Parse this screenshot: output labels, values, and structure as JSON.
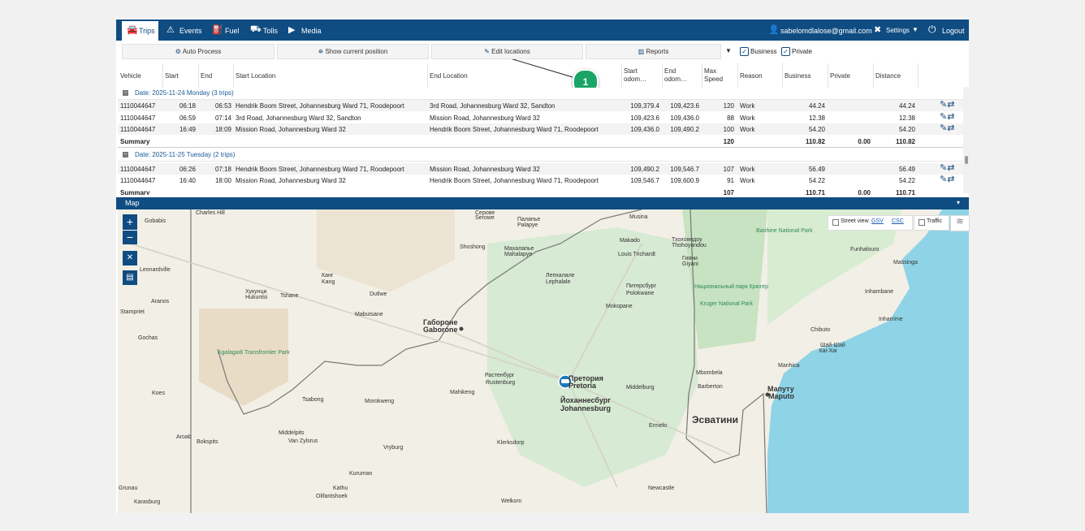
{
  "nav": {
    "items": [
      "Trips",
      "Events",
      "Fuel",
      "Tolls",
      "Media"
    ],
    "user": "sabelomdlalose@gmail.com",
    "settings": "Settings",
    "logout": "Logout"
  },
  "toolbar": {
    "buttons": [
      "Auto Process",
      "Show current position",
      "Edit locations",
      "Reports"
    ],
    "checkboxes": [
      "Business",
      "Private"
    ]
  },
  "table": {
    "columns": [
      "Vehicle",
      "Start",
      "End",
      "Start Location",
      "End Location",
      "Start odom…",
      "End odom…",
      "Max Speed",
      "Reason",
      "Business",
      "Private",
      "Distance"
    ],
    "groups": [
      {
        "label": "Date: 2025-11-24 Monday (3 trips)",
        "rows": [
          {
            "vehicle": "1110044647",
            "start": "06:18",
            "end": "06:53",
            "start_location": "Hendrik Boom Street, Johannesburg Ward 71, Roodepoort",
            "end_location": "3rd Road, Johannesburg Ward 32, Sandton",
            "start_odo": "109,379.4",
            "end_odo": "109,423.6",
            "max_speed": "120",
            "reason": "Work",
            "business": "44.24",
            "distance": "44.24"
          },
          {
            "vehicle": "1110044647",
            "start": "06:59",
            "end": "07:14",
            "start_location": "3rd Road, Johannesburg Ward 32, Sandton",
            "end_location": "Mission Road, Johannesburg Ward 32",
            "start_odo": "109,423.6",
            "end_odo": "109,436.0",
            "max_speed": "88",
            "reason": "Work",
            "business": "12.38",
            "distance": "12.38"
          },
          {
            "vehicle": "1110044647",
            "start": "16:49",
            "end": "18:09",
            "start_location": "Mission Road, Johannesburg Ward 32",
            "end_location": "Hendrik Boom Street, Johannesburg Ward 71, Roodepoort",
            "start_odo": "109,436.0",
            "end_odo": "109,490.2",
            "max_speed": "100",
            "reason": "Work",
            "business": "54.20",
            "distance": "54.20"
          }
        ],
        "summary": {
          "label": "Summary",
          "max_speed": "120",
          "business": "110.82",
          "private": "0.00",
          "distance": "110.82"
        }
      },
      {
        "label": "Date: 2025-11-25 Tuesday (2 trips)",
        "rows": [
          {
            "vehicle": "1110044647",
            "start": "06:26",
            "end": "07:18",
            "start_location": "Hendrik Boom Street, Johannesburg Ward 71, Roodepoort",
            "end_location": "Mission Road, Johannesburg Ward 32",
            "start_odo": "109,490.2",
            "end_odo": "109,546.7",
            "max_speed": "107",
            "reason": "Work",
            "business": "56.49",
            "distance": "56.49"
          },
          {
            "vehicle": "1110044647",
            "start": "16:40",
            "end": "18:00",
            "start_location": "Mission Road, Johannesburg Ward 32",
            "end_location": "Hendrik Boom Street, Johannesburg Ward 71, Roodepoort",
            "start_odo": "109,546.7",
            "end_odo": "109,600.9",
            "max_speed": "91",
            "reason": "Work",
            "business": "54.22",
            "distance": "54.22"
          }
        ],
        "summary": {
          "label": "Summary",
          "max_speed": "107",
          "business": "110.71",
          "private": "0.00",
          "distance": "110.71"
        }
      }
    ]
  },
  "annotation": "1",
  "map": {
    "title": "Map",
    "controls": {
      "street_view": "Street view",
      "gsv": "GSV",
      "csc": "CSC",
      "traffic": "Traffic"
    },
    "labels": [
      "Gobabis",
      "Charles Hill",
      "Серове",
      "Serowe",
      "Палапье",
      "Palapye",
      "Musina",
      "Shoshong",
      "Махалапье",
      "Mahalapye",
      "Makado",
      "Louis Trichardt",
      "Тхохояндоу",
      "Thohoyandou",
      "Гияни",
      "Giyani",
      "Banhine National Park",
      "Funhalouro",
      "Massinga",
      "Leonardville",
      "Канг",
      "Kang",
      "Лепхалале",
      "Lephalale",
      "Питерсбург",
      "Polokwane",
      "Национальный парк Крюгер",
      "Kruger National Park",
      "Inhambane",
      "Хукунци",
      "Hukuntsi",
      "Tshane",
      "Dutlwe",
      "Mokopane",
      "Aranos",
      "Stampriet",
      "Mabutsane",
      "Габороне",
      "Gaborone",
      "Chibuto",
      "Inharrime",
      "Gochas",
      "Kgalagadi Transfrontier Park",
      "Шай-Шай",
      "Xai-Xai",
      "Mbombela",
      "Manhica",
      "Растенбург",
      "Rustenburg",
      "Претория",
      "Pretoria",
      "Middelburg",
      "Barberton",
      "Мапуту",
      "Maputo",
      "Mahikeng",
      "Koes",
      "Йоханнесбург",
      "Johannesburg",
      "Tsabong",
      "Morokweng",
      "Эсватини",
      "Ermelo",
      "Middelpits",
      "Van Zylsrus",
      "Klerksdorp",
      "Vryburg",
      "Bokspits",
      "Aroab",
      "Kuruman",
      "Newcastle",
      "Kathu",
      "Olifantshoek",
      "Welkom",
      "Karasburg",
      "Grunau"
    ]
  }
}
